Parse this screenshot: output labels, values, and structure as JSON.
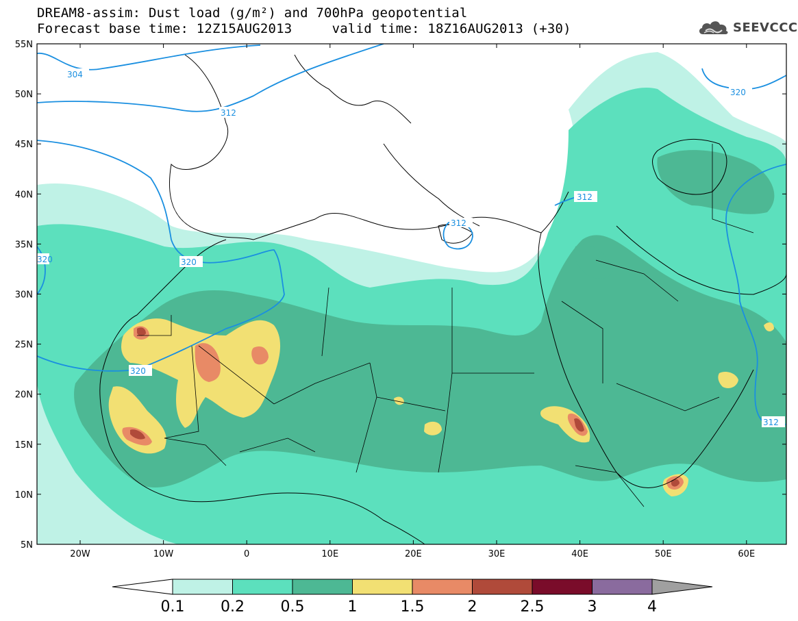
{
  "header": {
    "title_line1": "DREAM8-assim: Dust load (g/m²) and 700hPa geopotential",
    "title_line2": "Forecast base time: 12Z15AUG2013     valid time: 18Z16AUG2013 (+30)"
  },
  "logo": {
    "text": "SEEVCCC",
    "icon": "cloud-logo-icon"
  },
  "map": {
    "lat_labels": [
      "55N",
      "50N",
      "45N",
      "40N",
      "35N",
      "30N",
      "25N",
      "20N",
      "15N",
      "10N",
      "5N"
    ],
    "lon_labels": [
      "20W",
      "10W",
      "0",
      "10E",
      "20E",
      "30E",
      "40E",
      "50E",
      "60E"
    ],
    "contour_labels": [
      "304",
      "312",
      "312",
      "320",
      "320",
      "320",
      "312",
      "312",
      "320"
    ],
    "contour_color": "#1a8fe0",
    "land_outline_color": "#000000"
  },
  "colorbar": {
    "labels": [
      "0.1",
      "0.2",
      "0.5",
      "1",
      "1.5",
      "2",
      "2.5",
      "3",
      "4"
    ],
    "colors": [
      "#bff2e6",
      "#5ce0bd",
      "#4db894",
      "#f2e073",
      "#e88a66",
      "#b04a3a",
      "#7a0c2a",
      "#8a6b9e"
    ],
    "under_color": "#ffffff",
    "over_color": "#a0a0a0"
  }
}
